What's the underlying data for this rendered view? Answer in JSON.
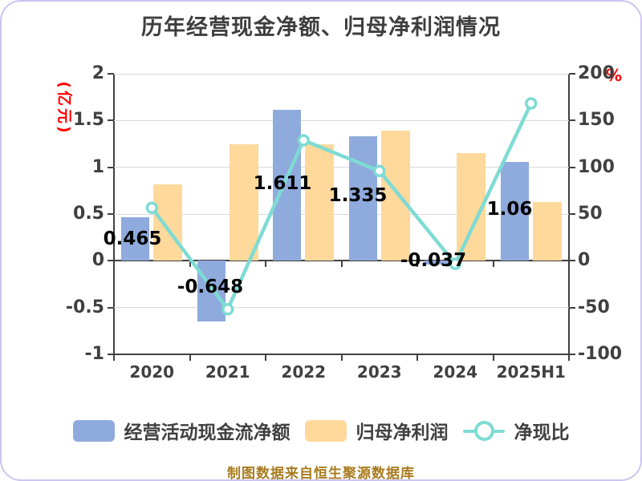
{
  "title": "历年经营现金净额、归母净利润情况",
  "footer": "制图数据来自恒生聚源数据库",
  "axis_units": {
    "left": "(亿元)",
    "right": "%"
  },
  "legend": {
    "items": [
      {
        "label": "经营活动现金流净额"
      },
      {
        "label": "归母净利润"
      },
      {
        "label": "净现比"
      }
    ]
  },
  "colors": {
    "bar_blue": "#8faadc",
    "bar_orange": "#ffd99b",
    "line_teal": "#7edbd4",
    "axis_text": "#404040",
    "grid": "#d9d9d9",
    "unit_red": "#ff0000",
    "title_text": "#3e3e3e",
    "footer_gold": "#a87b1e",
    "frame_border": "#cdc5ef"
  },
  "chart_data": {
    "type": "combo-bar-line",
    "categories": [
      "2020",
      "2021",
      "2022",
      "2023",
      "2024",
      "2025H1"
    ],
    "series": [
      {
        "name": "经营活动现金流净额",
        "type": "bar",
        "axis": "left",
        "color": "#8faadc",
        "values": [
          0.465,
          -0.648,
          1.611,
          1.335,
          -0.037,
          1.06
        ],
        "labels": [
          "0.465",
          "-0.648",
          "1.611",
          "1.335",
          "-0.037",
          "1.06"
        ]
      },
      {
        "name": "归母净利润",
        "type": "bar",
        "axis": "left",
        "color": "#ffd99b",
        "values": [
          0.82,
          1.25,
          1.25,
          1.39,
          1.15,
          0.63
        ]
      },
      {
        "name": "净现比",
        "type": "line",
        "axis": "right",
        "color": "#7edbd4",
        "values": [
          56.7,
          -51.8,
          128.9,
          96.0,
          -3.2,
          168.3
        ]
      }
    ],
    "left_axis": {
      "label": "(亿元)",
      "min": -1,
      "max": 2,
      "ticks": [
        2,
        1.5,
        1,
        0.5,
        0,
        -0.5,
        -1
      ]
    },
    "right_axis": {
      "label": "%",
      "min": -100,
      "max": 200,
      "ticks": [
        200,
        150,
        100,
        50,
        0,
        -50,
        -100
      ]
    },
    "grid": true,
    "legend_position": "bottom"
  }
}
